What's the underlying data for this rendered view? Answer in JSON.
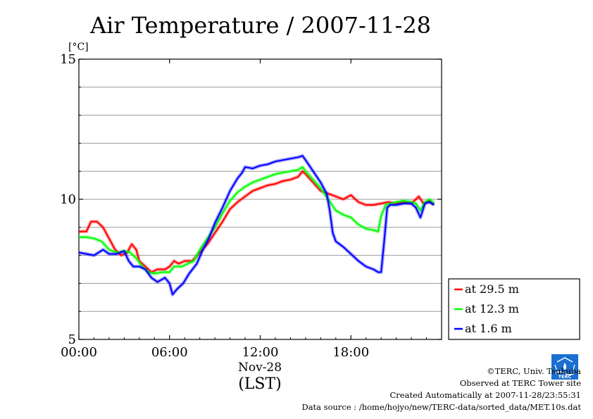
{
  "chart_data": {
    "type": "line",
    "title": "Air Temperature / 2007-11-28",
    "ylabel": "[°C]",
    "ylim": [
      5,
      15
    ],
    "y_ticks": [
      5,
      10,
      15
    ],
    "y_grid": [
      6,
      7,
      8,
      9,
      10,
      11,
      12,
      13,
      14
    ],
    "x_ticks": [
      {
        "hour": 0,
        "label": "00:00"
      },
      {
        "hour": 6,
        "label": "06:00"
      },
      {
        "hour": 12,
        "label": "12:00"
      },
      {
        "hour": 18,
        "label": "18:00"
      }
    ],
    "date_label": "Nov-28",
    "timezone_label": "(LST)",
    "xlim": [
      0,
      24
    ],
    "grid": true,
    "legend_position": "right",
    "series": [
      {
        "name": "at 29.5 m",
        "color": "#ff0000",
        "points": [
          [
            0,
            8.85
          ],
          [
            0.5,
            8.85
          ],
          [
            0.8,
            9.2
          ],
          [
            1.2,
            9.2
          ],
          [
            1.6,
            9.0
          ],
          [
            2.0,
            8.6
          ],
          [
            2.4,
            8.2
          ],
          [
            2.8,
            8.0
          ],
          [
            3.2,
            8.1
          ],
          [
            3.5,
            8.4
          ],
          [
            3.8,
            8.2
          ],
          [
            4.0,
            7.8
          ],
          [
            4.4,
            7.6
          ],
          [
            4.8,
            7.4
          ],
          [
            5.2,
            7.5
          ],
          [
            5.7,
            7.5
          ],
          [
            6.0,
            7.6
          ],
          [
            6.3,
            7.8
          ],
          [
            6.6,
            7.7
          ],
          [
            7.0,
            7.8
          ],
          [
            7.5,
            7.8
          ],
          [
            8.0,
            8.1
          ],
          [
            8.5,
            8.4
          ],
          [
            9.0,
            8.8
          ],
          [
            9.5,
            9.2
          ],
          [
            10.0,
            9.65
          ],
          [
            10.5,
            9.9
          ],
          [
            11.0,
            10.1
          ],
          [
            11.5,
            10.3
          ],
          [
            12.0,
            10.4
          ],
          [
            12.5,
            10.5
          ],
          [
            13.0,
            10.55
          ],
          [
            13.5,
            10.65
          ],
          [
            14.0,
            10.7
          ],
          [
            14.5,
            10.8
          ],
          [
            14.8,
            11.0
          ],
          [
            15.0,
            10.9
          ],
          [
            15.5,
            10.6
          ],
          [
            16.0,
            10.3
          ],
          [
            16.5,
            10.2
          ],
          [
            17.0,
            10.1
          ],
          [
            17.5,
            10.0
          ],
          [
            18.0,
            10.15
          ],
          [
            18.5,
            9.9
          ],
          [
            19.0,
            9.8
          ],
          [
            19.5,
            9.8
          ],
          [
            20.0,
            9.85
          ],
          [
            20.5,
            9.9
          ],
          [
            21.0,
            9.85
          ],
          [
            21.5,
            9.9
          ],
          [
            22.0,
            9.85
          ],
          [
            22.5,
            10.1
          ],
          [
            22.8,
            9.85
          ],
          [
            23.2,
            9.95
          ],
          [
            23.5,
            9.8
          ]
        ]
      },
      {
        "name": "at 12.3 m",
        "color": "#00ff00",
        "points": [
          [
            0,
            8.65
          ],
          [
            0.5,
            8.65
          ],
          [
            1.0,
            8.6
          ],
          [
            1.5,
            8.5
          ],
          [
            2.0,
            8.2
          ],
          [
            2.5,
            8.1
          ],
          [
            3.0,
            8.15
          ],
          [
            3.4,
            8.1
          ],
          [
            3.8,
            7.9
          ],
          [
            4.2,
            7.6
          ],
          [
            4.6,
            7.4
          ],
          [
            5.0,
            7.35
          ],
          [
            5.5,
            7.4
          ],
          [
            6.0,
            7.4
          ],
          [
            6.3,
            7.6
          ],
          [
            6.8,
            7.6
          ],
          [
            7.2,
            7.7
          ],
          [
            7.6,
            7.8
          ],
          [
            8.0,
            8.2
          ],
          [
            8.5,
            8.6
          ],
          [
            9.0,
            9.0
          ],
          [
            9.5,
            9.5
          ],
          [
            10.0,
            9.95
          ],
          [
            10.5,
            10.25
          ],
          [
            11.0,
            10.45
          ],
          [
            11.5,
            10.6
          ],
          [
            12.0,
            10.7
          ],
          [
            12.5,
            10.8
          ],
          [
            13.0,
            10.9
          ],
          [
            13.5,
            10.95
          ],
          [
            14.0,
            11.0
          ],
          [
            14.5,
            11.05
          ],
          [
            14.8,
            11.15
          ],
          [
            15.0,
            11.0
          ],
          [
            15.5,
            10.7
          ],
          [
            16.0,
            10.4
          ],
          [
            16.5,
            10.0
          ],
          [
            17.0,
            9.6
          ],
          [
            17.5,
            9.45
          ],
          [
            18.0,
            9.35
          ],
          [
            18.5,
            9.1
          ],
          [
            19.0,
            8.95
          ],
          [
            19.5,
            8.9
          ],
          [
            19.8,
            8.85
          ],
          [
            20.0,
            9.4
          ],
          [
            20.3,
            9.8
          ],
          [
            21.0,
            9.9
          ],
          [
            21.5,
            9.95
          ],
          [
            22.0,
            9.9
          ],
          [
            22.3,
            9.85
          ],
          [
            22.6,
            9.6
          ],
          [
            22.9,
            9.9
          ],
          [
            23.2,
            10.0
          ],
          [
            23.5,
            9.85
          ]
        ]
      },
      {
        "name": "at 1.6 m",
        "color": "#0000ff",
        "points": [
          [
            0,
            8.1
          ],
          [
            0.5,
            8.05
          ],
          [
            1.0,
            8.0
          ],
          [
            1.3,
            8.1
          ],
          [
            1.6,
            8.2
          ],
          [
            2.0,
            8.05
          ],
          [
            2.5,
            8.05
          ],
          [
            3.0,
            8.15
          ],
          [
            3.3,
            7.8
          ],
          [
            3.6,
            7.6
          ],
          [
            4.0,
            7.6
          ],
          [
            4.4,
            7.5
          ],
          [
            4.8,
            7.2
          ],
          [
            5.2,
            7.05
          ],
          [
            5.7,
            7.2
          ],
          [
            6.0,
            7.0
          ],
          [
            6.2,
            6.6
          ],
          [
            6.5,
            6.8
          ],
          [
            6.9,
            7.0
          ],
          [
            7.3,
            7.35
          ],
          [
            7.8,
            7.7
          ],
          [
            8.2,
            8.2
          ],
          [
            8.6,
            8.6
          ],
          [
            9.0,
            9.15
          ],
          [
            9.5,
            9.7
          ],
          [
            10.0,
            10.3
          ],
          [
            10.5,
            10.75
          ],
          [
            10.8,
            10.95
          ],
          [
            11.0,
            11.15
          ],
          [
            11.5,
            11.1
          ],
          [
            12.0,
            11.2
          ],
          [
            12.5,
            11.25
          ],
          [
            13.0,
            11.35
          ],
          [
            13.5,
            11.4
          ],
          [
            14.0,
            11.45
          ],
          [
            14.5,
            11.5
          ],
          [
            14.8,
            11.55
          ],
          [
            15.0,
            11.4
          ],
          [
            15.5,
            11.0
          ],
          [
            16.0,
            10.6
          ],
          [
            16.4,
            10.2
          ],
          [
            16.6,
            9.6
          ],
          [
            16.8,
            8.8
          ],
          [
            17.0,
            8.5
          ],
          [
            17.5,
            8.3
          ],
          [
            18.0,
            8.05
          ],
          [
            18.5,
            7.8
          ],
          [
            19.0,
            7.6
          ],
          [
            19.5,
            7.5
          ],
          [
            19.8,
            7.4
          ],
          [
            20.0,
            7.4
          ],
          [
            20.2,
            8.5
          ],
          [
            20.4,
            9.7
          ],
          [
            20.6,
            9.8
          ],
          [
            21.0,
            9.8
          ],
          [
            21.5,
            9.85
          ],
          [
            22.0,
            9.85
          ],
          [
            22.3,
            9.7
          ],
          [
            22.6,
            9.35
          ],
          [
            22.9,
            9.85
          ],
          [
            23.2,
            9.9
          ],
          [
            23.5,
            9.8
          ]
        ]
      }
    ]
  },
  "footer": {
    "copyright": "©TERC, Univ. Tsukuba",
    "site": "Observed at TERC Tower site",
    "created": "Created Automatically at 2007-11-28/23:55:31",
    "source": "Data source : /home/hojyo/new/TERC-data/sorted_data/MET.10s.dat"
  },
  "logo": {
    "text": "TERC"
  }
}
